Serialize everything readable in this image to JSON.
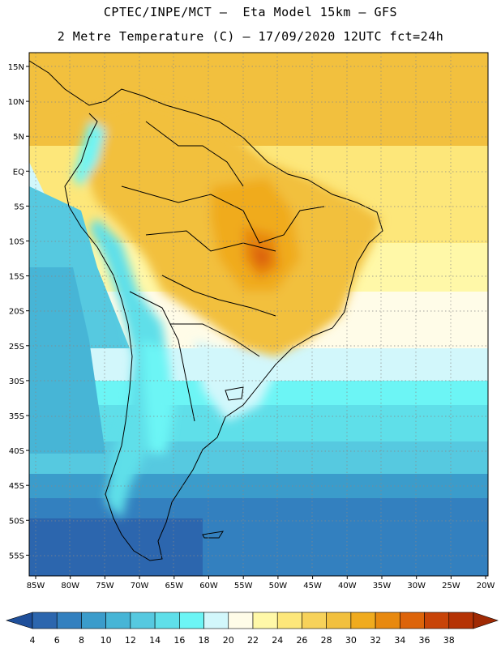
{
  "title": {
    "line1": "CPTEC/INPE/MCT –  Eta Model 15km – GFS",
    "line2": "2 Metre Temperature (C) – 17/09/2020 12UTC fct=24h"
  },
  "map": {
    "lat_ticks": [
      "15N",
      "10N",
      "5N",
      "EQ",
      "5S",
      "10S",
      "15S",
      "20S",
      "25S",
      "30S",
      "35S",
      "40S",
      "45S",
      "50S",
      "55S"
    ],
    "lon_ticks": [
      "85W",
      "80W",
      "75W",
      "70W",
      "65W",
      "60W",
      "55W",
      "50W",
      "45W",
      "40W",
      "35W",
      "30W",
      "25W",
      "20W"
    ]
  },
  "colorbar": {
    "labels": [
      "4",
      "6",
      "8",
      "10",
      "12",
      "14",
      "16",
      "18",
      "20",
      "22",
      "24",
      "26",
      "28",
      "30",
      "32",
      "34",
      "36",
      "38"
    ],
    "colors": [
      "#2c66ae",
      "#3380bf",
      "#3b9ccb",
      "#47b5d6",
      "#56c9e0",
      "#5fdfe9",
      "#6cf5f5",
      "#d2f7fb",
      "#fffce8",
      "#fff8a8",
      "#fde77a",
      "#f7d25a",
      "#f2c03e",
      "#f0ab1e",
      "#e8890f",
      "#dd640a",
      "#c84408",
      "#b53305"
    ]
  }
}
